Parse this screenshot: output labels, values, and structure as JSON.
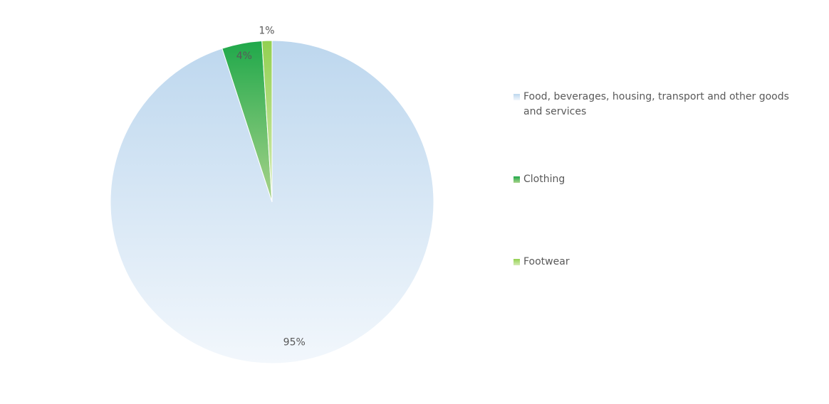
{
  "chart_data": {
    "type": "pie",
    "title": "",
    "slices": [
      {
        "name": "Food, beverages, housing, transport and other goods and services",
        "value": 95,
        "label": "95%",
        "color": "#bdd7ee",
        "color_light": "#f2f7fc"
      },
      {
        "name": "Clothing",
        "value": 4,
        "label": "4%",
        "color": "#1fa84a",
        "color_light": "#a9d38a"
      },
      {
        "name": "Footwear",
        "value": 1,
        "label": "1%",
        "color": "#92d050",
        "color_light": "#d6ecb6"
      }
    ],
    "legend_position": "right"
  }
}
